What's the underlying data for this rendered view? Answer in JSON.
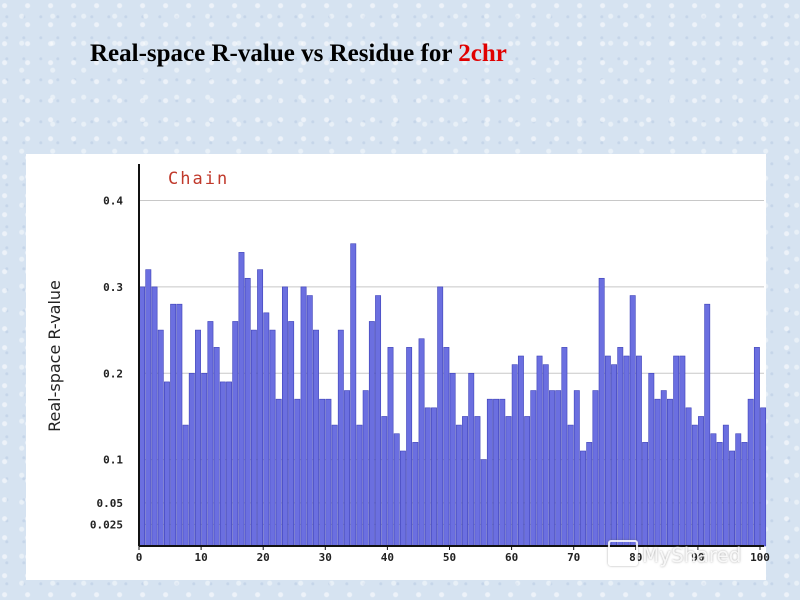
{
  "slide": {
    "title_prefix": "Real-space R-value vs Residue for ",
    "title_accent": "2chr",
    "accent_color": "#e00000"
  },
  "watermark": {
    "text": "MyShared",
    "icon": "presentation-board-icon"
  },
  "chart_data": {
    "type": "bar",
    "title": "",
    "legend": "Chain",
    "legend_color": "#c0392b",
    "bar_color": "#6b6fe0",
    "bar_edge_color": "#3d41b8",
    "xlabel": "",
    "ylabel": "Real-space R-value",
    "xlim": [
      0,
      100
    ],
    "ylim": [
      0,
      0.44
    ],
    "x_ticks": [
      "0",
      "10",
      "20",
      "30",
      "40",
      "50",
      "60",
      "70",
      "80",
      "90",
      "100"
    ],
    "y_ticks": [
      "0.025",
      "0.05",
      "0.1",
      "0.2",
      "0.3",
      "0.4"
    ],
    "y_tick_values": [
      0.025,
      0.05,
      0.1,
      0.2,
      0.3,
      0.4
    ],
    "grid": "horizontal",
    "x": [
      1,
      2,
      3,
      4,
      5,
      6,
      7,
      8,
      9,
      10,
      11,
      12,
      13,
      14,
      15,
      16,
      17,
      18,
      19,
      20,
      21,
      22,
      23,
      24,
      25,
      26,
      27,
      28,
      29,
      30,
      31,
      32,
      33,
      34,
      35,
      36,
      37,
      38,
      39,
      40,
      41,
      42,
      43,
      44,
      45,
      46,
      47,
      48,
      49,
      50,
      51,
      52,
      53,
      54,
      55,
      56,
      57,
      58,
      59,
      60,
      61,
      62,
      63,
      64,
      65,
      66,
      67,
      68,
      69,
      70,
      71,
      72,
      73,
      74,
      75,
      76,
      77,
      78,
      79,
      80,
      81,
      82,
      83,
      84,
      85,
      86,
      87,
      88,
      89,
      90,
      91,
      92,
      93,
      94,
      95,
      96,
      97,
      98,
      99,
      100,
      101
    ],
    "values": [
      0.3,
      0.32,
      0.3,
      0.25,
      0.19,
      0.28,
      0.28,
      0.14,
      0.2,
      0.25,
      0.2,
      0.26,
      0.23,
      0.19,
      0.19,
      0.26,
      0.34,
      0.31,
      0.25,
      0.32,
      0.27,
      0.25,
      0.17,
      0.3,
      0.26,
      0.17,
      0.3,
      0.29,
      0.25,
      0.17,
      0.17,
      0.14,
      0.25,
      0.18,
      0.35,
      0.14,
      0.18,
      0.26,
      0.29,
      0.15,
      0.23,
      0.13,
      0.11,
      0.23,
      0.12,
      0.24,
      0.16,
      0.16,
      0.3,
      0.23,
      0.2,
      0.14,
      0.15,
      0.2,
      0.15,
      0.1,
      0.17,
      0.17,
      0.17,
      0.15,
      0.21,
      0.22,
      0.15,
      0.18,
      0.22,
      0.21,
      0.18,
      0.18,
      0.23,
      0.14,
      0.18,
      0.11,
      0.12,
      0.18,
      0.31,
      0.22,
      0.21,
      0.23,
      0.22,
      0.29,
      0.22,
      0.12,
      0.2,
      0.17,
      0.18,
      0.17,
      0.22,
      0.22,
      0.16,
      0.14,
      0.15,
      0.28,
      0.13,
      0.12,
      0.14,
      0.11,
      0.13,
      0.12,
      0.17,
      0.23,
      0.16
    ]
  }
}
